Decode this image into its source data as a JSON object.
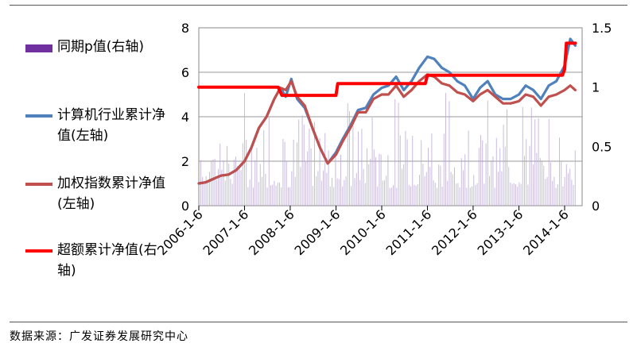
{
  "chart_data": {
    "type": "line",
    "x_ticks": [
      "2006-1-6",
      "2007-1-6",
      "2008-1-6",
      "2009-1-6",
      "2010-1-6",
      "2011-1-6",
      "2012-1-6",
      "2013-1-6",
      "2014-1-6"
    ],
    "y_left": {
      "ticks": [
        "0",
        "2",
        "4",
        "6",
        "8"
      ],
      "ylim": [
        0,
        8
      ]
    },
    "y_right": {
      "ticks": [
        "0",
        "0.5",
        "1",
        "1.5"
      ],
      "ylim": [
        0,
        1.5
      ]
    },
    "grid": "horizontal",
    "legend_position": "left",
    "series": [
      {
        "name": "同期p值(右轴)",
        "axis": "right",
        "kind": "bar",
        "color": "#7030A0",
        "note": "dense weekly vertical bars, values roughly 0–1"
      },
      {
        "name": "计算机行业累计净值(左轴)",
        "axis": "left",
        "kind": "line",
        "color": "#4F81BD",
        "points": [
          [
            "2006-01-06",
            1.0
          ],
          [
            "2006-03-01",
            1.05
          ],
          [
            "2006-05-01",
            1.2
          ],
          [
            "2006-07-01",
            1.35
          ],
          [
            "2006-09-01",
            1.4
          ],
          [
            "2006-11-01",
            1.6
          ],
          [
            "2007-01-06",
            2.0
          ],
          [
            "2007-03-01",
            2.6
          ],
          [
            "2007-05-01",
            3.5
          ],
          [
            "2007-07-01",
            4.0
          ],
          [
            "2007-09-01",
            4.8
          ],
          [
            "2007-10-20",
            5.3
          ],
          [
            "2007-12-01",
            4.9
          ],
          [
            "2008-01-15",
            5.7
          ],
          [
            "2008-03-01",
            4.8
          ],
          [
            "2008-05-01",
            4.4
          ],
          [
            "2008-07-01",
            3.5
          ],
          [
            "2008-09-01",
            2.6
          ],
          [
            "2008-11-01",
            1.9
          ],
          [
            "2009-01-06",
            2.4
          ],
          [
            "2009-03-01",
            3.0
          ],
          [
            "2009-05-01",
            3.6
          ],
          [
            "2009-07-01",
            4.3
          ],
          [
            "2009-09-01",
            4.4
          ],
          [
            "2009-11-01",
            5.0
          ],
          [
            "2010-01-06",
            5.3
          ],
          [
            "2010-03-01",
            5.4
          ],
          [
            "2010-05-01",
            5.8
          ],
          [
            "2010-07-01",
            5.2
          ],
          [
            "2010-09-01",
            5.6
          ],
          [
            "2010-11-01",
            6.2
          ],
          [
            "2011-01-06",
            6.7
          ],
          [
            "2011-03-01",
            6.6
          ],
          [
            "2011-05-01",
            6.2
          ],
          [
            "2011-07-01",
            6.0
          ],
          [
            "2011-09-01",
            5.6
          ],
          [
            "2011-11-01",
            5.4
          ],
          [
            "2012-01-06",
            4.8
          ],
          [
            "2012-03-01",
            5.3
          ],
          [
            "2012-05-01",
            5.6
          ],
          [
            "2012-07-01",
            5.0
          ],
          [
            "2012-09-01",
            4.8
          ],
          [
            "2012-11-01",
            4.8
          ],
          [
            "2013-01-06",
            5.0
          ],
          [
            "2013-03-01",
            5.4
          ],
          [
            "2013-05-01",
            5.2
          ],
          [
            "2013-07-01",
            4.8
          ],
          [
            "2013-09-01",
            5.4
          ],
          [
            "2013-11-01",
            5.6
          ],
          [
            "2014-01-06",
            6.3
          ],
          [
            "2014-02-20",
            7.5
          ],
          [
            "2014-04-01",
            7.2
          ]
        ]
      },
      {
        "name": "加权指数累计净值(左轴)",
        "axis": "left",
        "kind": "line",
        "color": "#C0504D",
        "points": [
          [
            "2006-01-06",
            1.0
          ],
          [
            "2006-03-01",
            1.05
          ],
          [
            "2006-05-01",
            1.2
          ],
          [
            "2006-07-01",
            1.35
          ],
          [
            "2006-09-01",
            1.4
          ],
          [
            "2006-11-01",
            1.6
          ],
          [
            "2007-01-06",
            2.0
          ],
          [
            "2007-03-01",
            2.6
          ],
          [
            "2007-05-01",
            3.5
          ],
          [
            "2007-07-01",
            4.0
          ],
          [
            "2007-09-01",
            4.8
          ],
          [
            "2007-10-20",
            5.3
          ],
          [
            "2007-12-01",
            5.2
          ],
          [
            "2008-01-15",
            5.6
          ],
          [
            "2008-03-01",
            4.9
          ],
          [
            "2008-05-01",
            4.5
          ],
          [
            "2008-07-01",
            3.5
          ],
          [
            "2008-09-01",
            2.6
          ],
          [
            "2008-11-01",
            1.9
          ],
          [
            "2009-01-06",
            2.3
          ],
          [
            "2009-03-01",
            2.9
          ],
          [
            "2009-05-01",
            3.5
          ],
          [
            "2009-07-01",
            4.2
          ],
          [
            "2009-09-01",
            4.2
          ],
          [
            "2009-11-01",
            4.8
          ],
          [
            "2010-01-06",
            5.0
          ],
          [
            "2010-03-01",
            5.0
          ],
          [
            "2010-05-01",
            5.4
          ],
          [
            "2010-07-01",
            4.9
          ],
          [
            "2010-09-01",
            5.2
          ],
          [
            "2010-11-01",
            5.6
          ],
          [
            "2011-01-06",
            5.9
          ],
          [
            "2011-03-01",
            5.8
          ],
          [
            "2011-05-01",
            5.5
          ],
          [
            "2011-07-01",
            5.4
          ],
          [
            "2011-09-01",
            5.1
          ],
          [
            "2011-11-01",
            5.0
          ],
          [
            "2012-01-06",
            4.7
          ],
          [
            "2012-03-01",
            5.0
          ],
          [
            "2012-05-01",
            5.2
          ],
          [
            "2012-07-01",
            4.9
          ],
          [
            "2012-09-01",
            4.6
          ],
          [
            "2012-11-01",
            4.6
          ],
          [
            "2013-01-06",
            4.7
          ],
          [
            "2013-03-01",
            5.0
          ],
          [
            "2013-05-01",
            4.9
          ],
          [
            "2013-07-01",
            4.5
          ],
          [
            "2013-09-01",
            4.9
          ],
          [
            "2013-11-01",
            5.0
          ],
          [
            "2014-01-06",
            5.2
          ],
          [
            "2014-02-20",
            5.4
          ],
          [
            "2014-04-01",
            5.2
          ]
        ]
      },
      {
        "name": "超额累计净值(右轴)",
        "axis": "right",
        "kind": "line",
        "color": "#FF0000",
        "points": [
          [
            "2006-01-06",
            1.0
          ],
          [
            "2007-10-01",
            1.0
          ],
          [
            "2007-11-01",
            0.93
          ],
          [
            "2009-01-06",
            0.93
          ],
          [
            "2009-01-20",
            1.03
          ],
          [
            "2010-12-20",
            1.03
          ],
          [
            "2011-01-06",
            1.1
          ],
          [
            "2013-12-20",
            1.1
          ],
          [
            "2014-01-06",
            1.15
          ],
          [
            "2014-01-20",
            1.37
          ],
          [
            "2014-04-01",
            1.37
          ]
        ]
      }
    ],
    "title": "",
    "xlabel": "",
    "ylabel": ""
  },
  "legend": [
    {
      "label": "同期p值(右轴)",
      "color": "#7030A0",
      "kind": "bar"
    },
    {
      "label": "计算机行业累计净值(左轴)",
      "color": "#4F81BD",
      "kind": "line"
    },
    {
      "label": "加权指数累计净值(左轴)",
      "color": "#C0504D",
      "kind": "line"
    },
    {
      "label": "超额累计净值(右轴)",
      "color": "#FF0000",
      "kind": "line"
    }
  ],
  "source": "数据来源：广发证券发展研究中心"
}
